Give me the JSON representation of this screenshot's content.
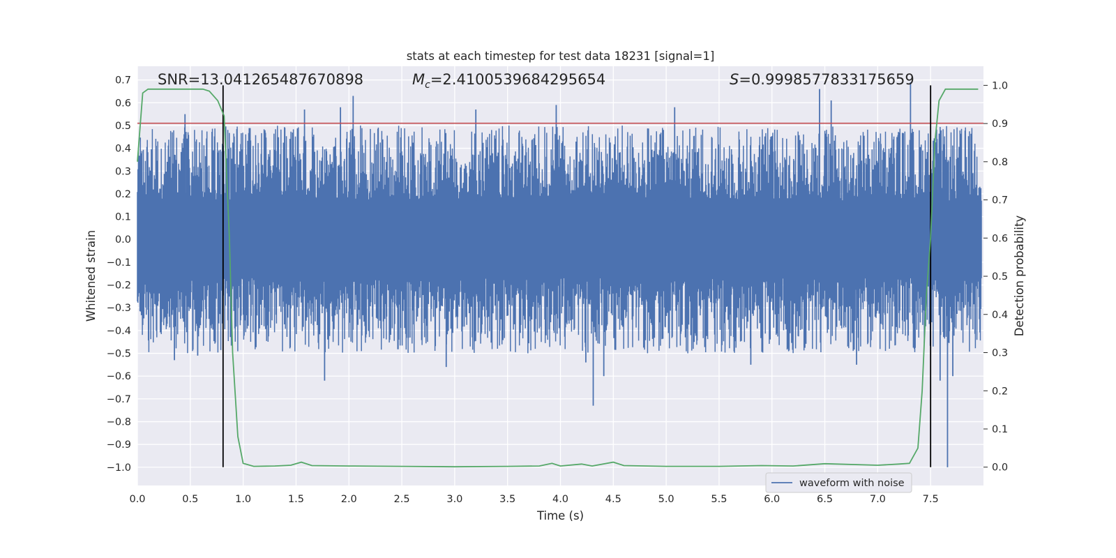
{
  "chart_data": {
    "type": "line",
    "title": "stats at each timestep for test data 18231 [signal=1]",
    "xlabel": "Time (s)",
    "ylabel": "Whitened strain",
    "y2label": "Detection probability",
    "xlim": [
      0.0,
      8.0
    ],
    "ylim": [
      -1.08,
      0.76
    ],
    "y2lim": [
      -0.048,
      1.05
    ],
    "x_ticks": [
      "0.0",
      "0.5",
      "1.0",
      "1.5",
      "2.0",
      "2.5",
      "3.0",
      "3.5",
      "4.0",
      "4.5",
      "5.0",
      "5.5",
      "6.0",
      "6.5",
      "7.0",
      "7.5"
    ],
    "y_ticks": [
      "0.7",
      "0.6",
      "0.5",
      "0.4",
      "0.3",
      "0.2",
      "0.1",
      "0.0",
      "−0.1",
      "−0.2",
      "−0.3",
      "−0.4",
      "−0.5",
      "−0.6",
      "−0.7",
      "−0.8",
      "−0.9",
      "−1.0"
    ],
    "y2_ticks": [
      "1.0",
      "0.9",
      "0.8",
      "0.7",
      "0.6",
      "0.5",
      "0.4",
      "0.3",
      "0.2",
      "0.1",
      "0.0"
    ],
    "annotations": {
      "snr": "SNR=13.041265487670898",
      "mc_symbol": "M",
      "mc_sub": "c",
      "mc_value": "=2.4100539684295654",
      "s_symbol": "S",
      "s_value": "=0.9998577833175659"
    },
    "threshold_line": {
      "y": 0.51,
      "color": "#c44e52"
    },
    "vertical_lines": [
      0.81,
      7.5
    ],
    "waveform": {
      "name": "waveform with noise",
      "color": "#4c72b0",
      "core_amplitude": 0.17,
      "noise_envelope": 0.33,
      "spikes": [
        {
          "t": 0.45,
          "v": 0.55
        },
        {
          "t": 1.58,
          "v": 0.57
        },
        {
          "t": 1.92,
          "v": 0.58
        },
        {
          "t": 2.04,
          "v": 0.63
        },
        {
          "t": 3.2,
          "v": 0.57
        },
        {
          "t": 3.96,
          "v": 0.59
        },
        {
          "t": 5.08,
          "v": 0.58
        },
        {
          "t": 6.45,
          "v": 0.66
        },
        {
          "t": 6.56,
          "v": 0.61
        },
        {
          "t": 7.31,
          "v": 0.69
        },
        {
          "t": 1.77,
          "v": -0.62
        },
        {
          "t": 2.92,
          "v": -0.56
        },
        {
          "t": 4.24,
          "v": -0.54
        },
        {
          "t": 4.31,
          "v": -0.73
        },
        {
          "t": 4.41,
          "v": -0.6
        },
        {
          "t": 5.8,
          "v": -0.55
        },
        {
          "t": 7.59,
          "v": -0.62
        },
        {
          "t": 7.66,
          "v": -1.0
        },
        {
          "t": 7.71,
          "v": -0.6
        },
        {
          "t": 0.35,
          "v": -0.53
        },
        {
          "t": 0.57,
          "v": -0.51
        },
        {
          "t": 6.8,
          "v": -0.55
        }
      ]
    },
    "detection_probability": {
      "color": "#55a868",
      "points": [
        [
          0.0,
          0.8
        ],
        [
          0.05,
          0.98
        ],
        [
          0.1,
          0.99
        ],
        [
          0.3,
          0.99
        ],
        [
          0.5,
          0.99
        ],
        [
          0.62,
          0.99
        ],
        [
          0.68,
          0.985
        ],
        [
          0.76,
          0.96
        ],
        [
          0.82,
          0.92
        ],
        [
          0.87,
          0.6
        ],
        [
          0.9,
          0.3
        ],
        [
          0.95,
          0.08
        ],
        [
          1.0,
          0.01
        ],
        [
          1.1,
          0.002
        ],
        [
          1.3,
          0.003
        ],
        [
          1.45,
          0.005
        ],
        [
          1.55,
          0.013
        ],
        [
          1.65,
          0.004
        ],
        [
          2.0,
          0.003
        ],
        [
          2.5,
          0.002
        ],
        [
          3.0,
          0.001
        ],
        [
          3.5,
          0.002
        ],
        [
          3.8,
          0.003
        ],
        [
          3.92,
          0.01
        ],
        [
          4.0,
          0.003
        ],
        [
          4.2,
          0.008
        ],
        [
          4.3,
          0.003
        ],
        [
          4.5,
          0.013
        ],
        [
          4.6,
          0.004
        ],
        [
          5.0,
          0.002
        ],
        [
          5.5,
          0.002
        ],
        [
          5.9,
          0.004
        ],
        [
          6.2,
          0.003
        ],
        [
          6.5,
          0.009
        ],
        [
          7.0,
          0.005
        ],
        [
          7.2,
          0.008
        ],
        [
          7.3,
          0.01
        ],
        [
          7.38,
          0.05
        ],
        [
          7.42,
          0.2
        ],
        [
          7.46,
          0.45
        ],
        [
          7.5,
          0.6
        ],
        [
          7.54,
          0.85
        ],
        [
          7.58,
          0.96
        ],
        [
          7.64,
          0.99
        ],
        [
          7.8,
          0.99
        ],
        [
          7.95,
          0.99
        ]
      ]
    },
    "legend": {
      "label": "waveform with noise",
      "position": "lower-right"
    }
  }
}
